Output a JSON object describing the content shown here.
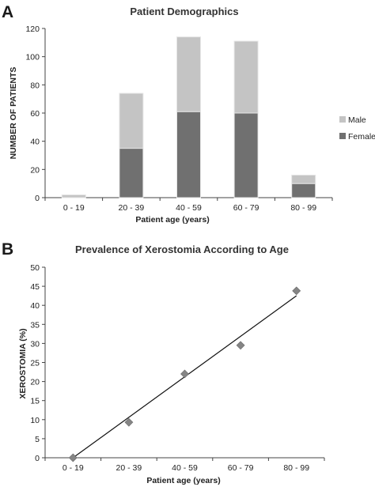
{
  "panels": {
    "a": {
      "letter": "A"
    },
    "b": {
      "letter": "B"
    }
  },
  "chart_data": [
    {
      "type": "bar",
      "stacked": true,
      "title": "Patient Demographics",
      "xlabel": "Patient age (years)",
      "ylabel": "NUMBER OF PATIENTS",
      "ylim": [
        0,
        120
      ],
      "yticks": [
        "0",
        "20",
        "40",
        "60",
        "80",
        "100",
        "120"
      ],
      "categories": [
        "0 - 19",
        "20 - 39",
        "40 - 59",
        "60 - 79",
        "80 - 99"
      ],
      "series": [
        {
          "name": "Female",
          "color": "#707070",
          "values": [
            0,
            35,
            61,
            60,
            10
          ]
        },
        {
          "name": "Male",
          "color": "#c4c4c4",
          "values": [
            2,
            39,
            53,
            51,
            6
          ]
        }
      ],
      "legend": "right",
      "grid": false
    },
    {
      "type": "scatter",
      "title": "Prevalence of Xerostomia According to Age",
      "xlabel": "Patient age (years)",
      "ylabel": "XEROSTOMIA (%)",
      "ylim": [
        0,
        50
      ],
      "yticks": [
        "0",
        "5",
        "10",
        "15",
        "20",
        "25",
        "30",
        "35",
        "40",
        "45",
        "50"
      ],
      "categories": [
        "0 - 19",
        "20 - 39",
        "40 - 59",
        "60 - 79",
        "80 - 99"
      ],
      "values": [
        0,
        9.3,
        22,
        29.5,
        43.8
      ],
      "trendline": {
        "start": 0,
        "end": 42.5
      },
      "marker_color": "#858585",
      "legend": "none",
      "grid": false
    }
  ]
}
